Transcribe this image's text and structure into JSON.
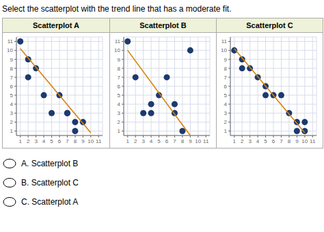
{
  "title": "Select the scatterplot with the trend line that has a moderate fit.",
  "annotations": [
    "A.  Scatterplot B",
    "B.  Scatterplot C",
    "C.  Scatterplot A"
  ],
  "chart_data": [
    {
      "type": "scatter",
      "title": "Scatterplot A",
      "xlim": [
        0.5,
        11.5
      ],
      "ylim": [
        0.5,
        11.5
      ],
      "xticks": [
        1,
        2,
        3,
        4,
        5,
        6,
        7,
        8,
        9,
        10,
        11
      ],
      "yticks": [
        1,
        2,
        3,
        4,
        5,
        6,
        7,
        8,
        9,
        10,
        11
      ],
      "grid": true,
      "series": [
        {
          "type": "scatter",
          "color": "#1c3a6e",
          "x": [
            1,
            2,
            2,
            3,
            4,
            5,
            6,
            7,
            7,
            8,
            8,
            9
          ],
          "values": [
            11,
            9,
            7,
            8,
            5,
            3,
            5,
            3,
            3,
            2,
            1,
            2
          ]
        },
        {
          "type": "line",
          "color": "#d4820a",
          "x": [
            1,
            10
          ],
          "values": [
            10.2,
            0.8
          ]
        }
      ]
    },
    {
      "type": "scatter",
      "title": "Scatterplot B",
      "xlim": [
        0.5,
        11.5
      ],
      "ylim": [
        0.5,
        11.5
      ],
      "xticks": [
        1,
        2,
        3,
        4,
        5,
        6,
        7,
        8,
        9,
        10,
        11
      ],
      "yticks": [
        1,
        2,
        3,
        4,
        5,
        6,
        7,
        8,
        9,
        10,
        11
      ],
      "grid": true,
      "series": [
        {
          "type": "scatter",
          "color": "#1c3a6e",
          "x": [
            1,
            2,
            3,
            4,
            4,
            5,
            6,
            7,
            7,
            8,
            9
          ],
          "values": [
            11,
            7,
            3,
            4,
            3,
            5,
            7,
            4,
            3,
            1,
            10
          ]
        },
        {
          "type": "line",
          "color": "#d4820a",
          "x": [
            1,
            9
          ],
          "values": [
            10.0,
            0.5
          ]
        }
      ]
    },
    {
      "type": "scatter",
      "title": "Scatterplot C",
      "xlim": [
        0.5,
        11.5
      ],
      "ylim": [
        0.5,
        11.5
      ],
      "xticks": [
        1,
        2,
        3,
        4,
        5,
        6,
        7,
        8,
        9,
        10,
        11
      ],
      "yticks": [
        1,
        2,
        3,
        4,
        5,
        6,
        7,
        8,
        9,
        10,
        11
      ],
      "grid": true,
      "series": [
        {
          "type": "scatter",
          "color": "#1c3a6e",
          "x": [
            1,
            2,
            2,
            3,
            4,
            5,
            5,
            6,
            7,
            8,
            9,
            9,
            10,
            10
          ],
          "values": [
            10,
            9,
            8,
            8,
            7,
            6,
            5,
            5,
            5,
            3,
            2,
            1,
            2,
            1
          ]
        },
        {
          "type": "line",
          "color": "#d4820a",
          "x": [
            1,
            10
          ],
          "values": [
            10.2,
            0.8
          ]
        }
      ]
    }
  ]
}
